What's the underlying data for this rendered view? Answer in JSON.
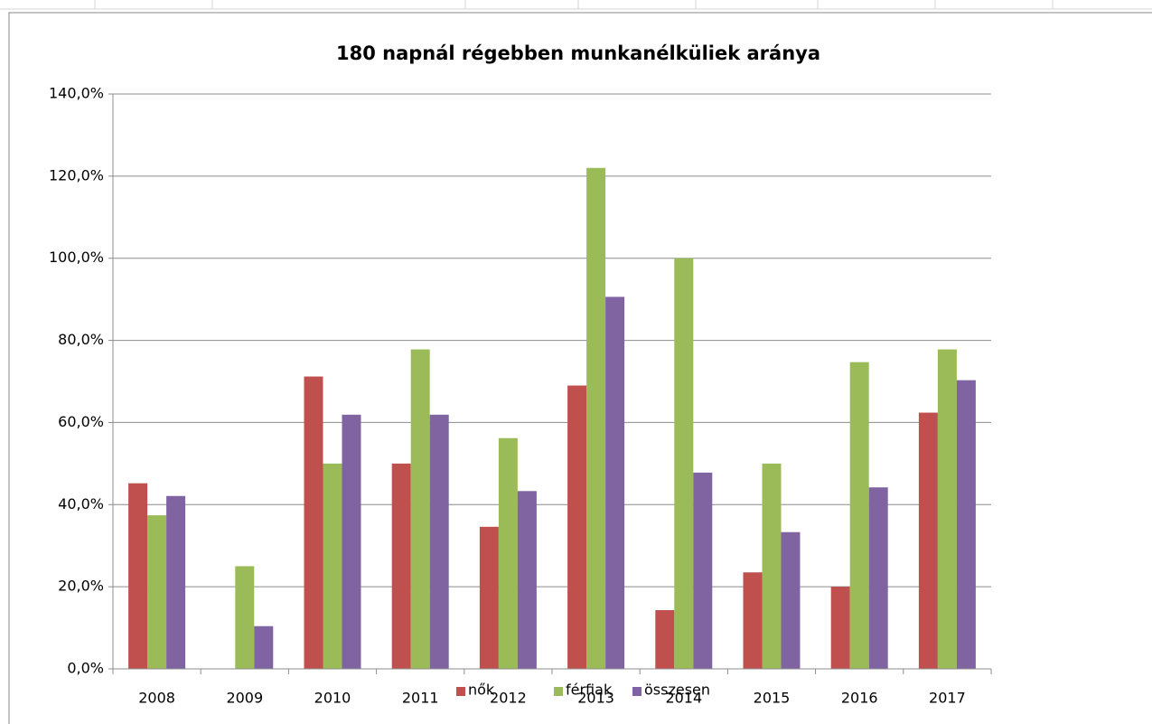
{
  "chart_data": {
    "type": "bar",
    "title": "180 napnál régebben munkanélküliek aránya",
    "categories": [
      "2008",
      "2009",
      "2010",
      "2011",
      "2012",
      "2013",
      "2014",
      "2015",
      "2016",
      "2017"
    ],
    "series": [
      {
        "name": "nők",
        "color": "#c0504d",
        "values": [
          45.2,
          0,
          71.2,
          50.0,
          34.6,
          69.0,
          14.3,
          23.5,
          20.0,
          62.4
        ]
      },
      {
        "name": "férfiak",
        "color": "#9bbb59",
        "values": [
          37.4,
          25.0,
          50.0,
          77.8,
          56.2,
          122.0,
          100.0,
          50.0,
          74.7,
          77.8
        ]
      },
      {
        "name": "összesen",
        "color": "#8064a2",
        "values": [
          42.1,
          10.4,
          61.9,
          61.9,
          43.3,
          90.6,
          47.8,
          33.3,
          44.2,
          70.3
        ]
      }
    ],
    "ylim": [
      0,
      140
    ],
    "yticks": [
      {
        "value": 0,
        "label": "0,0%"
      },
      {
        "value": 20,
        "label": "20,0%"
      },
      {
        "value": 40,
        "label": "40,0%"
      },
      {
        "value": 60,
        "label": "60,0%"
      },
      {
        "value": 80,
        "label": "80,0%"
      },
      {
        "value": 100,
        "label": "100,0%"
      },
      {
        "value": 120,
        "label": "120,0%"
      },
      {
        "value": 140,
        "label": "140,0%"
      }
    ],
    "grid": true,
    "legend": "bottom"
  }
}
